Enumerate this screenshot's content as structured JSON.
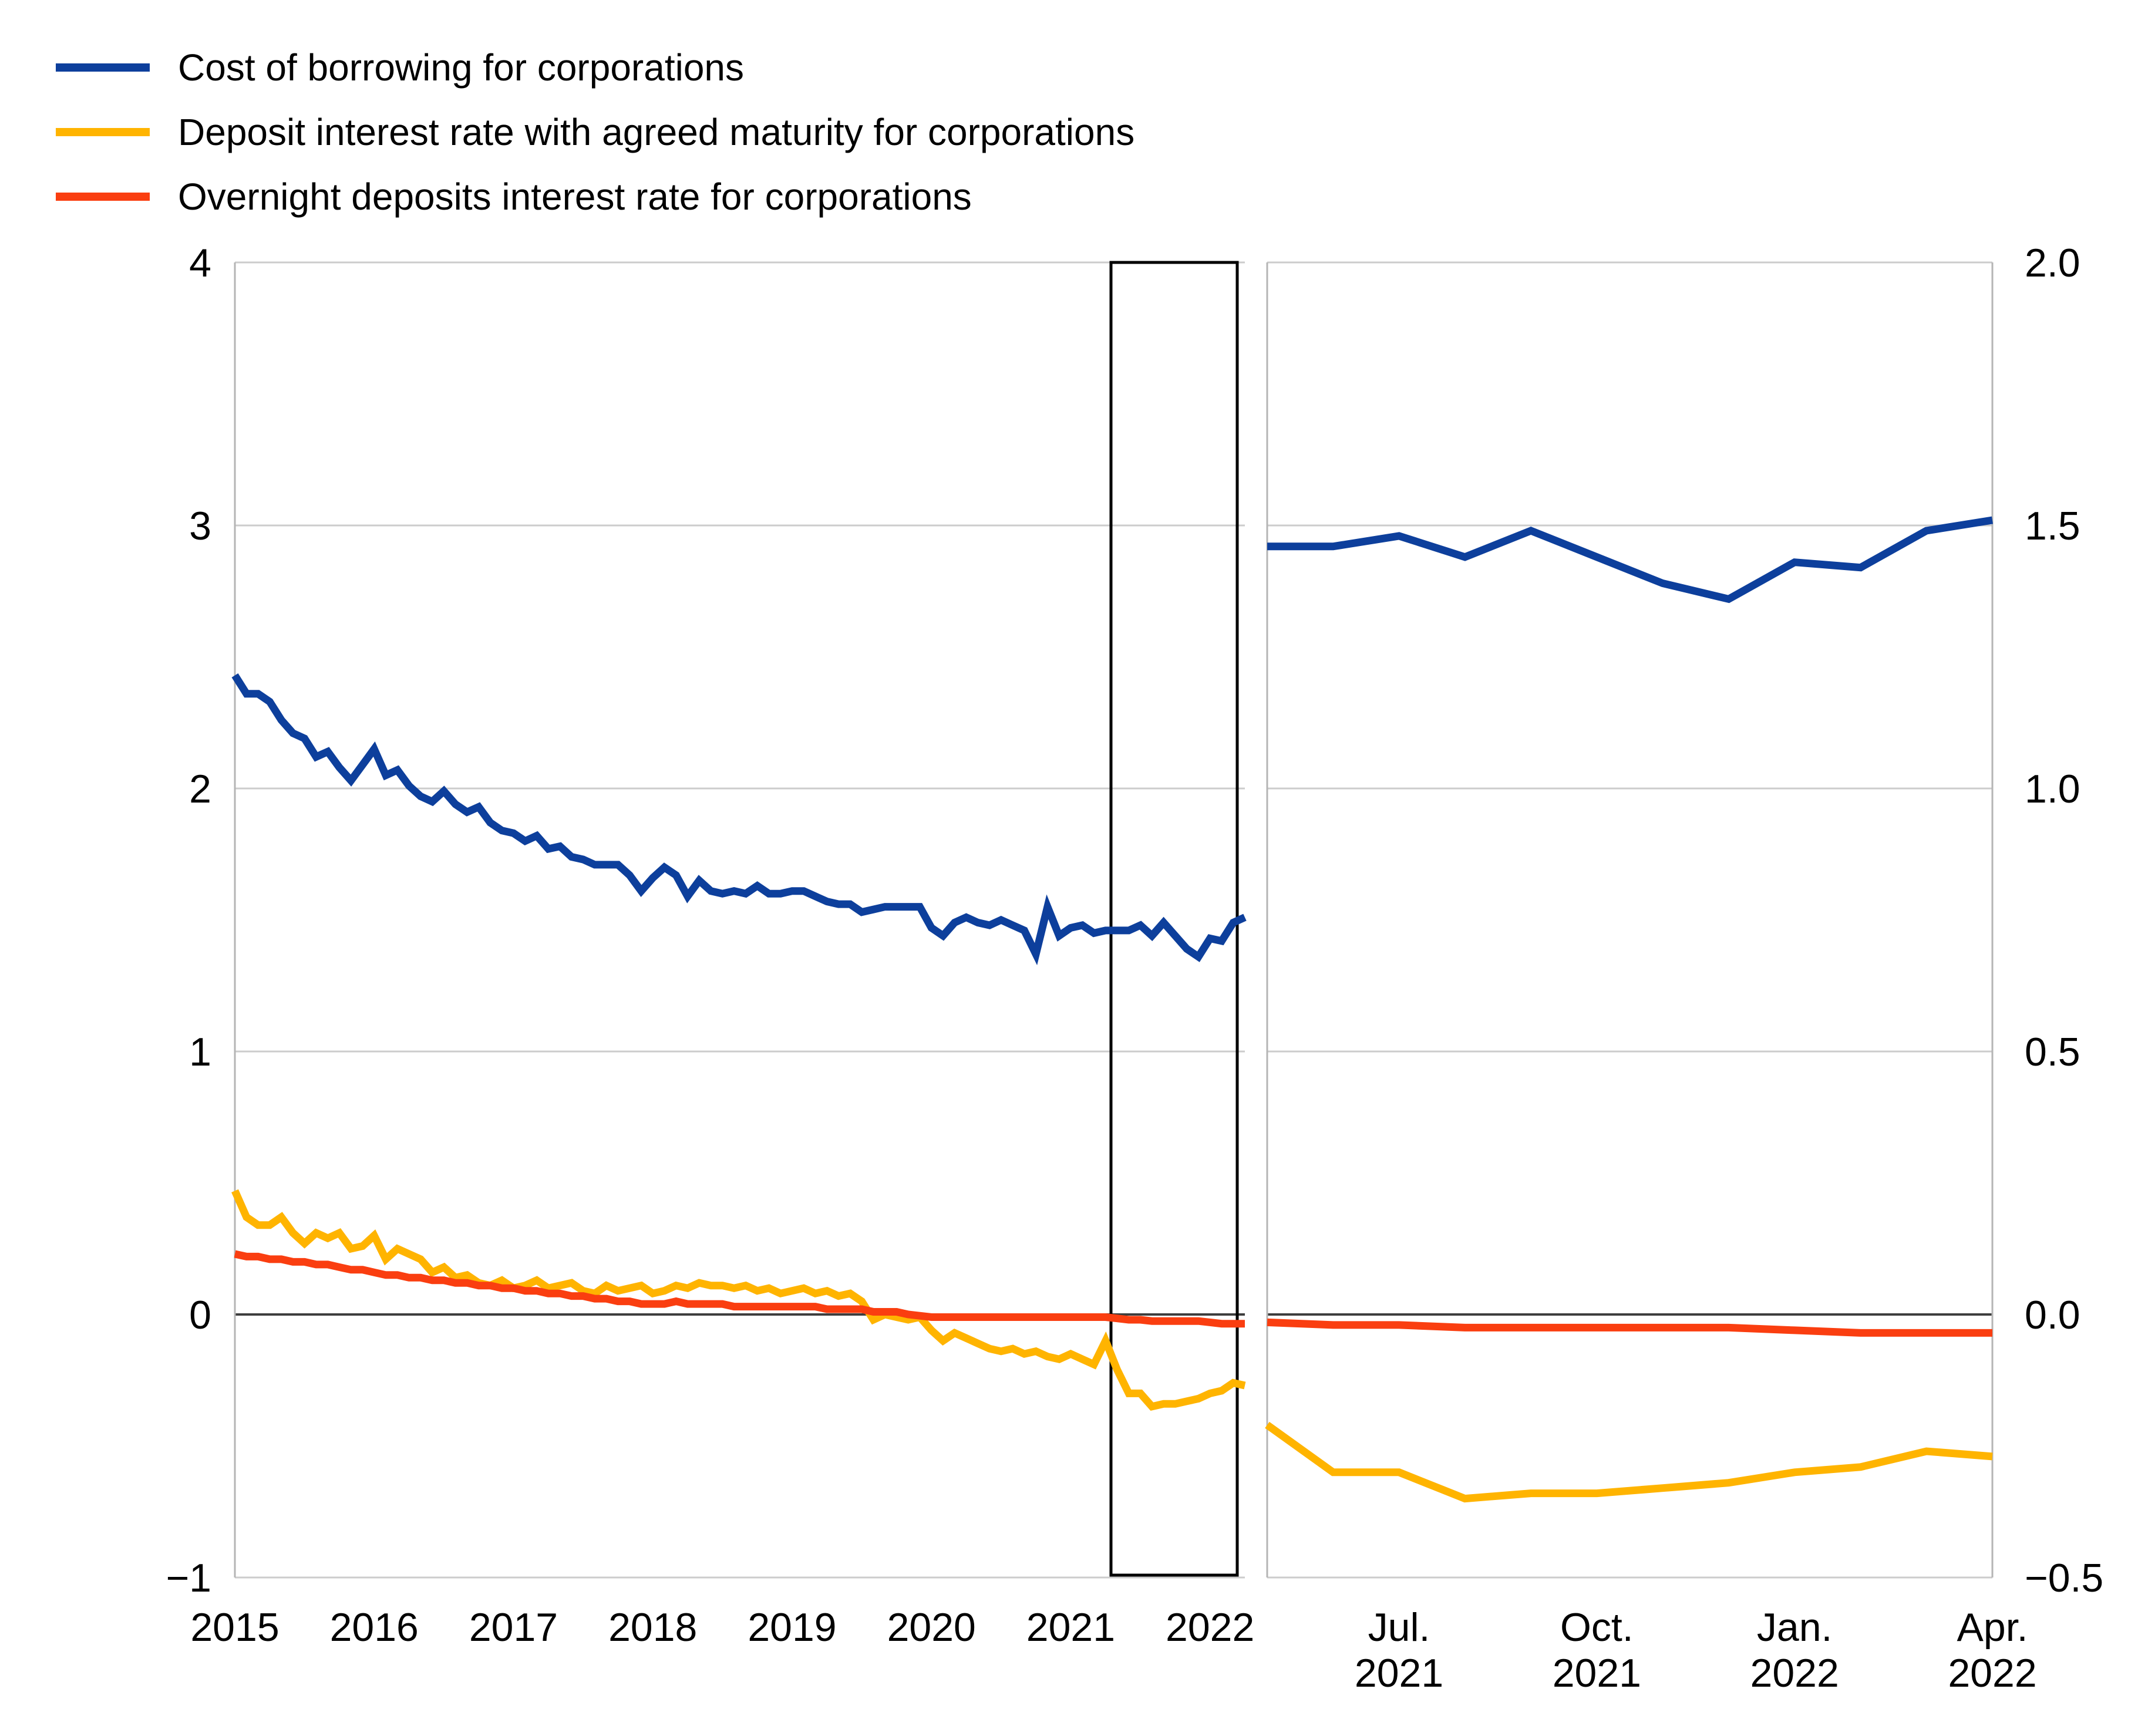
{
  "legend": {
    "items": [
      {
        "label": "Cost of borrowing for corporations",
        "color": "#0d3f9c",
        "series_key": "cost_of_borrowing"
      },
      {
        "label": "Deposit interest rate with agreed maturity for corporations",
        "color": "#ffb400",
        "series_key": "deposit_agreed_maturity"
      },
      {
        "label": "Overnight deposits interest rate for corporations",
        "color": "#fa3e10",
        "series_key": "overnight_deposits"
      }
    ]
  },
  "colors": {
    "grid": "#cccccc",
    "zero_line": "#3d3d3d",
    "frame": "#b5b5b5",
    "highlight_box": "#000000",
    "text": "#000000",
    "background": "#ffffff"
  },
  "chart_data": [
    {
      "type": "line",
      "panel": "full-period",
      "x_unit": "monthly",
      "x_range": [
        "Jan. 2015",
        "Apr. 2022"
      ],
      "ylim": [
        -1,
        4
      ],
      "grid": true,
      "y_axis_side": "left",
      "y_ticks": [
        {
          "v": 4,
          "label": "4"
        },
        {
          "v": 3,
          "label": "3"
        },
        {
          "v": 2,
          "label": "2"
        },
        {
          "v": 1,
          "label": "1"
        },
        {
          "v": 0,
          "label": "0"
        },
        {
          "v": -1,
          "label": "−1"
        }
      ],
      "x_ticks": [
        {
          "m": 0,
          "label": "2015"
        },
        {
          "m": 12,
          "label": "2016"
        },
        {
          "m": 24,
          "label": "2017"
        },
        {
          "m": 36,
          "label": "2018"
        },
        {
          "m": 48,
          "label": "2019"
        },
        {
          "m": 60,
          "label": "2020"
        },
        {
          "m": 72,
          "label": "2021"
        },
        {
          "m": 84,
          "label": "2022"
        }
      ],
      "highlight_box": {
        "from": "May 2021",
        "to": "Apr. 2022"
      },
      "series": [
        {
          "name": "Cost of borrowing for corporations",
          "color": "#0d3f9c",
          "values": [
            2.43,
            2.36,
            2.36,
            2.33,
            2.26,
            2.21,
            2.19,
            2.12,
            2.14,
            2.08,
            2.03,
            2.09,
            2.15,
            2.05,
            2.07,
            2.01,
            1.97,
            1.95,
            1.99,
            1.94,
            1.91,
            1.93,
            1.87,
            1.84,
            1.83,
            1.8,
            1.82,
            1.77,
            1.78,
            1.74,
            1.73,
            1.71,
            1.71,
            1.71,
            1.67,
            1.61,
            1.66,
            1.7,
            1.67,
            1.59,
            1.65,
            1.61,
            1.6,
            1.61,
            1.6,
            1.63,
            1.6,
            1.6,
            1.61,
            1.61,
            1.59,
            1.57,
            1.56,
            1.56,
            1.53,
            1.54,
            1.55,
            1.55,
            1.55,
            1.55,
            1.47,
            1.44,
            1.49,
            1.51,
            1.49,
            1.48,
            1.5,
            1.48,
            1.46,
            1.37,
            1.55,
            1.44,
            1.47,
            1.48,
            1.45,
            1.46,
            1.46,
            1.46,
            1.48,
            1.44,
            1.49,
            1.44,
            1.39,
            1.36,
            1.43,
            1.42,
            1.49,
            1.51
          ]
        },
        {
          "name": "Deposit interest rate with agreed maturity for corporations",
          "color": "#ffb400",
          "values": [
            0.47,
            0.37,
            0.34,
            0.34,
            0.37,
            0.31,
            0.27,
            0.31,
            0.29,
            0.31,
            0.25,
            0.26,
            0.3,
            0.21,
            0.25,
            0.23,
            0.21,
            0.16,
            0.18,
            0.14,
            0.15,
            0.12,
            0.11,
            0.13,
            0.1,
            0.11,
            0.13,
            0.1,
            0.11,
            0.12,
            0.09,
            0.08,
            0.11,
            0.09,
            0.1,
            0.11,
            0.08,
            0.09,
            0.11,
            0.1,
            0.12,
            0.11,
            0.11,
            0.1,
            0.11,
            0.09,
            0.1,
            0.08,
            0.09,
            0.1,
            0.08,
            0.09,
            0.07,
            0.08,
            0.05,
            -0.02,
            0.0,
            -0.01,
            -0.02,
            -0.01,
            -0.06,
            -0.1,
            -0.07,
            -0.09,
            -0.11,
            -0.13,
            -0.14,
            -0.13,
            -0.15,
            -0.14,
            -0.16,
            -0.17,
            -0.15,
            -0.17,
            -0.19,
            -0.1,
            -0.21,
            -0.3,
            -0.3,
            -0.35,
            -0.34,
            -0.34,
            -0.33,
            -0.32,
            -0.3,
            -0.29,
            -0.26,
            -0.27
          ]
        },
        {
          "name": "Overnight deposits interest rate for corporations",
          "color": "#fa3e10",
          "values": [
            0.23,
            0.22,
            0.22,
            0.21,
            0.21,
            0.2,
            0.2,
            0.19,
            0.19,
            0.18,
            0.17,
            0.17,
            0.16,
            0.15,
            0.15,
            0.14,
            0.14,
            0.13,
            0.13,
            0.12,
            0.12,
            0.11,
            0.11,
            0.1,
            0.1,
            0.09,
            0.09,
            0.08,
            0.08,
            0.07,
            0.07,
            0.06,
            0.06,
            0.05,
            0.05,
            0.04,
            0.04,
            0.04,
            0.05,
            0.04,
            0.04,
            0.04,
            0.04,
            0.03,
            0.03,
            0.03,
            0.03,
            0.03,
            0.03,
            0.03,
            0.03,
            0.02,
            0.02,
            0.02,
            0.02,
            0.01,
            0.01,
            0.01,
            0.0,
            -0.005,
            -0.01,
            -0.01,
            -0.01,
            -0.01,
            -0.01,
            -0.01,
            -0.01,
            -0.01,
            -0.01,
            -0.01,
            -0.01,
            -0.01,
            -0.01,
            -0.01,
            -0.01,
            -0.01,
            -0.015,
            -0.02,
            -0.02,
            -0.025,
            -0.025,
            -0.025,
            -0.025,
            -0.025,
            -0.03,
            -0.035,
            -0.035,
            -0.035
          ]
        }
      ]
    },
    {
      "type": "line",
      "panel": "zoom-last-12-months",
      "x_unit": "monthly",
      "x_range": [
        "May 2021",
        "Apr. 2022"
      ],
      "ylim": [
        -0.5,
        2.0
      ],
      "grid": true,
      "y_axis_side": "right",
      "y_ticks": [
        {
          "v": 2,
          "label": "2.0"
        },
        {
          "v": 1.5,
          "label": "1.5"
        },
        {
          "v": 1,
          "label": "1.0"
        },
        {
          "v": 0.5,
          "label": "0.5"
        },
        {
          "v": 0,
          "label": "0.0"
        },
        {
          "v": -0.5,
          "label": "−0.5"
        }
      ],
      "x_ticks": [
        {
          "m": 2,
          "lines": [
            "Jul.",
            "2021"
          ]
        },
        {
          "m": 5,
          "lines": [
            "Oct.",
            "2021"
          ]
        },
        {
          "m": 8,
          "lines": [
            "Jan.",
            "2022"
          ]
        },
        {
          "m": 11,
          "lines": [
            "Apr.",
            "2022"
          ]
        }
      ],
      "series": [
        {
          "name": "Cost of borrowing for corporations",
          "color": "#0d3f9c",
          "values": [
            1.46,
            1.46,
            1.48,
            1.44,
            1.49,
            1.44,
            1.39,
            1.36,
            1.43,
            1.42,
            1.49,
            1.51
          ]
        },
        {
          "name": "Deposit interest rate with agreed maturity for corporations",
          "color": "#ffb400",
          "values": [
            -0.21,
            -0.3,
            -0.3,
            -0.35,
            -0.34,
            -0.34,
            -0.33,
            -0.32,
            -0.3,
            -0.29,
            -0.26,
            -0.27
          ]
        },
        {
          "name": "Overnight deposits interest rate for corporations",
          "color": "#fa3e10",
          "values": [
            -0.015,
            -0.02,
            -0.02,
            -0.025,
            -0.025,
            -0.025,
            -0.025,
            -0.025,
            -0.03,
            -0.035,
            -0.035,
            -0.035
          ]
        }
      ]
    }
  ]
}
